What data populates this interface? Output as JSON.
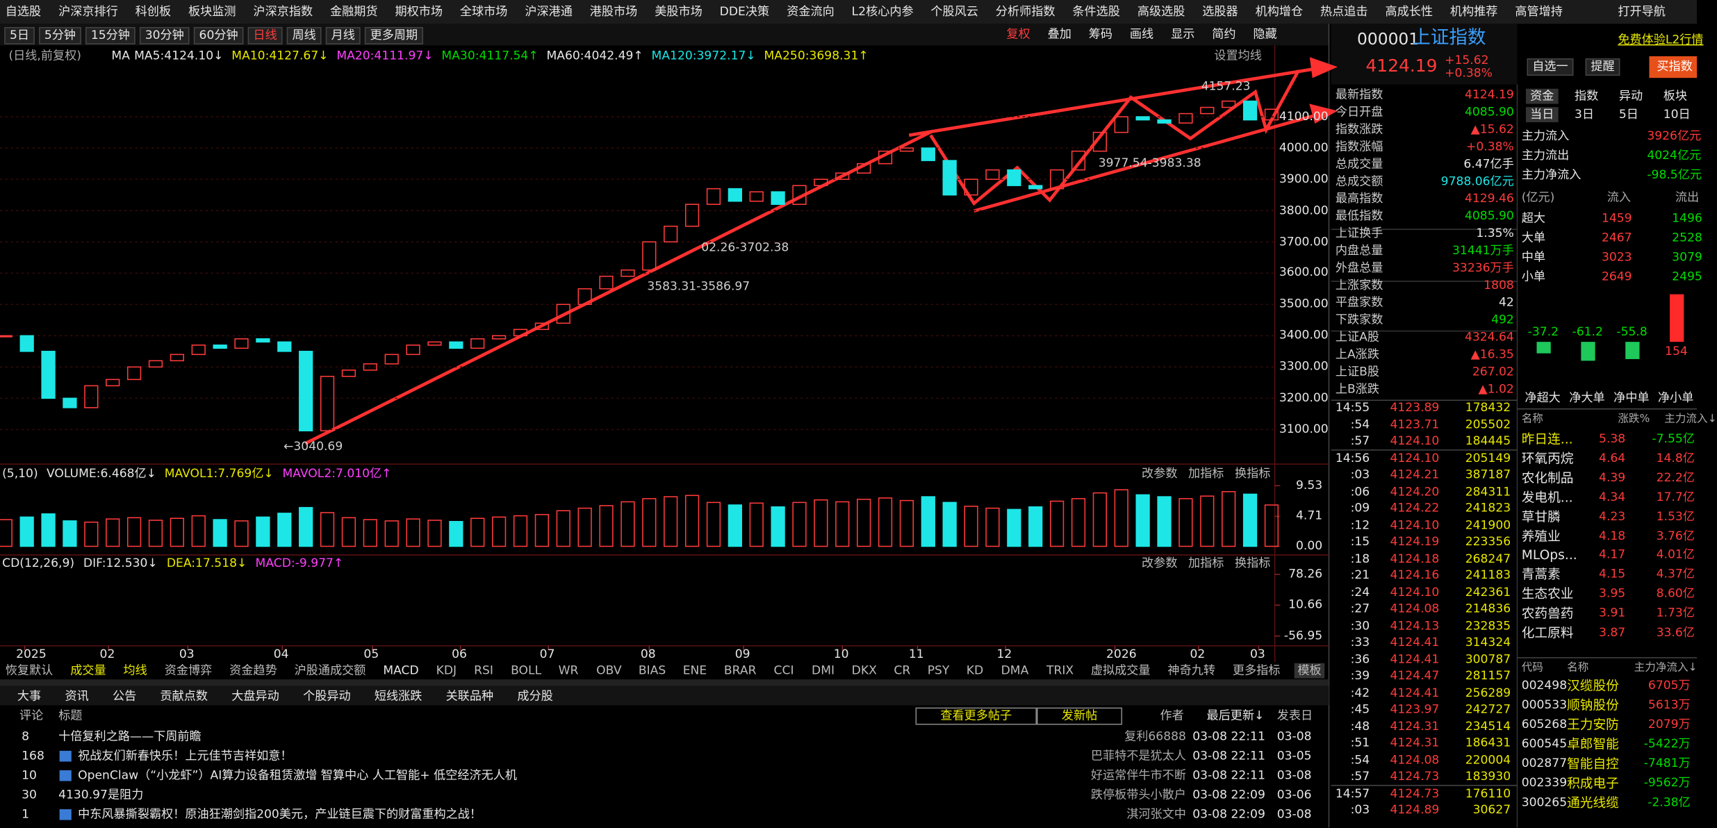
{
  "menu": [
    "自选股",
    "沪深京排行",
    "科创板",
    "板块监测",
    "沪深京指数",
    "金融期货",
    "期权市场",
    "全球市场",
    "沪深港通",
    "港股市场",
    "美股市场",
    "DDE决策",
    "资金流向",
    "L2核心内参",
    "个股风云",
    "分析师指数",
    "条件选股",
    "高级选股",
    "选股器",
    "机构增仓",
    "热点追击",
    "高成长性",
    "机构推荐",
    "高管增持",
    "打开导航"
  ],
  "periods": [
    "5日",
    "5分钟",
    "15分钟",
    "30分钟",
    "60分钟",
    "日线",
    "周线",
    "月线",
    "更多周期"
  ],
  "tools": [
    "复权",
    "叠加",
    "筹码",
    "画线",
    "显示",
    "简约",
    "隐藏"
  ],
  "ma_line": {
    "mode": "(日线,前复权)",
    "ma": "MA",
    "items": [
      "MA5:4124.10↓",
      "MA10:4127.67↓",
      "MA20:4111.97↓",
      "MA30:4117.54↑",
      "MA60:4042.49↑",
      "MA120:3972.17↓",
      "MA250:3698.31↑"
    ],
    "setting": "设置均线"
  },
  "chart_data": {
    "type": "candlestick",
    "closes": [
      3400,
      3350,
      3200,
      3170,
      3240,
      3260,
      3300,
      3320,
      3340,
      3370,
      3360,
      3390,
      3380,
      3350,
      3096,
      3270,
      3290,
      3310,
      3340,
      3370,
      3380,
      3360,
      3390,
      3400,
      3420,
      3440,
      3500,
      3550,
      3590,
      3610,
      3700,
      3750,
      3820,
      3870,
      3830,
      3860,
      3820,
      3880,
      3900,
      3920,
      3950,
      3990,
      4000,
      3960,
      3850,
      3900,
      3930,
      3880,
      3870,
      3930,
      3990,
      4050,
      4100,
      4090,
      4080,
      4110,
      4130,
      4150,
      4090,
      4124
    ],
    "volumes": [
      4.2,
      4.6,
      5.1,
      4.0,
      3.8,
      4.3,
      4.5,
      4.1,
      4.4,
      4.8,
      4.2,
      4.0,
      4.6,
      5.2,
      6.1,
      5.3,
      4.5,
      4.2,
      4.0,
      4.3,
      4.1,
      3.9,
      4.4,
      4.6,
      4.8,
      5.0,
      5.6,
      6.0,
      6.4,
      7.0,
      7.5,
      7.8,
      8.0,
      6.9,
      6.5,
      6.8,
      6.2,
      6.9,
      7.3,
      7.0,
      7.4,
      7.6,
      7.2,
      7.8,
      6.9,
      6.3,
      6.0,
      5.8,
      6.2,
      7.1,
      7.5,
      8.4,
      8.9,
      8.1,
      7.8,
      7.5,
      7.9,
      8.6,
      8.2,
      6.5
    ],
    "ylim": [
      2993,
      4328
    ],
    "yticks": [
      {
        "value": 3100,
        "label": "3100.00"
      },
      {
        "value": 3200,
        "label": "3200.00"
      },
      {
        "value": 3300,
        "label": "3300.00"
      },
      {
        "value": 3400,
        "label": "3400.00"
      },
      {
        "value": 3500,
        "label": "3500.00"
      },
      {
        "value": 3600,
        "label": "3600.00"
      },
      {
        "value": 3700,
        "label": "3700.00"
      },
      {
        "value": 3800,
        "label": "3800.00"
      },
      {
        "value": 3900,
        "label": "3900.00"
      },
      {
        "value": 4000,
        "label": "4000.00"
      },
      {
        "value": 4100,
        "label": "4100.00"
      }
    ],
    "vol_ylim": [
      0,
      10.5
    ],
    "vol_yticks": [
      {
        "value": 0,
        "label": "0.00"
      },
      4.71,
      9.53
    ],
    "macd_ylim": [
      -76,
      104
    ],
    "macd_yticks": [
      -56.95,
      10.66,
      78.26
    ],
    "xticks": [
      {
        "value": 0.9,
        "label": "2025"
      },
      {
        "value": 4.8,
        "label": "02"
      },
      {
        "value": 8.5,
        "label": "03"
      },
      {
        "value": 12.9,
        "label": "04"
      },
      {
        "value": 17.1,
        "label": "05"
      },
      {
        "value": 21.2,
        "label": "06"
      },
      {
        "value": 25.3,
        "label": "07"
      },
      {
        "value": 30.0,
        "label": "08"
      },
      {
        "value": 34.4,
        "label": "09"
      },
      {
        "value": 39.0,
        "label": "10"
      },
      {
        "value": 42.5,
        "label": "11"
      },
      {
        "value": 46.6,
        "label": "12"
      },
      {
        "value": 51.7,
        "label": "2026"
      },
      {
        "value": 55.6,
        "label": "02"
      },
      {
        "value": 58.4,
        "label": "03"
      }
    ],
    "grid": true,
    "up_color": "#ff3b3b",
    "down_color": "#1ee6e6",
    "annotations": [
      "←3040.69",
      "3583.31-3586.97",
      "02.26-3702.38",
      "3977.54-3983.38",
      "4157.23"
    ]
  },
  "vol_label": [
    "(5,10)",
    "VOLUME:6.468亿↓",
    "MAVOL1:7.769亿↓",
    "MAVOL2:7.010亿↑"
  ],
  "macd_label": [
    "CD(12,26,9)",
    "DIF:12.530↓",
    "DEA:17.518↓",
    "MACD:-9.977↑"
  ],
  "panel_buttons": [
    "改参数",
    "加指标",
    "换指标"
  ],
  "indicators": [
    "恢复默认",
    "成交量",
    "均线",
    "资金博弈",
    "资金趋势",
    "沪股通成交额",
    "MACD",
    "KDJ",
    "RSI",
    "BOLL",
    "WR",
    "OBV",
    "BIAS",
    "ENE",
    "BRAR",
    "CCI",
    "DMI",
    "DKX",
    "CR",
    "PSY",
    "KD",
    "DMA",
    "TRIX",
    "虚拟成交量",
    "神奇九转",
    "更多指标",
    "模板"
  ],
  "news_tabs": [
    "大事",
    "资讯",
    "公告",
    "贡献点数",
    "大盘异动",
    "个股异动",
    "短线涨跌",
    "关联品种",
    "成分股"
  ],
  "news_header": {
    "comments": "评论",
    "title": "标题",
    "more": "查看更多帖子",
    "post": "发新帖",
    "author": "作者",
    "updated": "最后更新↓",
    "date": "发表日"
  },
  "news": [
    [
      "8",
      "十倍复利之路——下周前瞻",
      "复利66888",
      "03-08 22:11",
      "03-08"
    ],
    [
      "168",
      "祝战友们新春快乐！上元佳节吉祥如意！",
      "巴菲特不是犹太人",
      "03-08 22:11",
      "03-05"
    ],
    [
      "10",
      "OpenClaw（“小龙虾”）AI算力设备租赁激增 智算中心 人工智能+ 低空经济无人机",
      "好运常伴牛市不断",
      "03-08 22:11",
      "03-08"
    ],
    [
      "30",
      "4130.97是阻力",
      "跌停板带头小散户",
      "03-08 22:09",
      "03-06"
    ],
    [
      "1",
      "中东风暴撕裂霸权！原油狂潮剑指200美元，产业链巨震下的财富重构之战！",
      "淇河张文中",
      "03-08 22:09",
      "03-08"
    ]
  ],
  "quote": {
    "code": "000001",
    "name": "上证指数",
    "price": "4124.19",
    "change": "+15.62",
    "pct": "+0.38%",
    "trial": "免费体验L2行情",
    "watch": "自选一",
    "alert": "提醒",
    "buy": "买指数",
    "rows": [
      [
        "最新指数",
        "4124.19"
      ],
      [
        "今日开盘",
        "4085.90"
      ],
      [
        "指数涨跌",
        "▲15.62"
      ],
      [
        "指数涨幅",
        "+0.38%"
      ],
      [
        "总成交量",
        "6.47亿手"
      ],
      [
        "总成交额",
        "9788.06亿元"
      ],
      [
        "最高指数",
        "4129.46"
      ],
      [
        "最低指数",
        "4085.90"
      ],
      [
        "上证换手",
        "1.35%"
      ],
      [
        "内盘总量",
        "31441万手"
      ],
      [
        "外盘总量",
        "33236万手"
      ],
      [
        "上涨家数",
        "1808"
      ],
      [
        "平盘家数",
        "42"
      ],
      [
        "下跌家数",
        "492"
      ],
      [
        "上证A股",
        "4324.64"
      ],
      [
        "上A涨跌",
        "▲16.35"
      ],
      [
        "上证B股",
        "267.02"
      ],
      [
        "上B涨跌",
        "▲1.02"
      ]
    ]
  },
  "ticks": [
    [
      "14:55",
      "4123.89",
      "178432"
    ],
    [
      ":54",
      "4123.71",
      "205502"
    ],
    [
      ":57",
      "4124.10",
      "184445"
    ],
    [
      "14:56",
      "4124.10",
      "205149"
    ],
    [
      ":03",
      "4124.21",
      "387187"
    ],
    [
      ":06",
      "4124.20",
      "284311"
    ],
    [
      ":09",
      "4124.22",
      "241823"
    ],
    [
      ":12",
      "4124.10",
      "241900"
    ],
    [
      ":15",
      "4124.19",
      "223356"
    ],
    [
      ":18",
      "4124.18",
      "268247"
    ],
    [
      ":21",
      "4124.16",
      "241183"
    ],
    [
      ":24",
      "4124.10",
      "242361"
    ],
    [
      ":27",
      "4124.08",
      "214836"
    ],
    [
      ":30",
      "4124.13",
      "232835"
    ],
    [
      ":33",
      "4124.41",
      "314324"
    ],
    [
      ":36",
      "4124.41",
      "300787"
    ],
    [
      ":39",
      "4124.47",
      "281157"
    ],
    [
      ":42",
      "4124.41",
      "256289"
    ],
    [
      ":45",
      "4123.97",
      "242727"
    ],
    [
      ":48",
      "4124.31",
      "234514"
    ],
    [
      ":51",
      "4124.31",
      "186431"
    ],
    [
      ":54",
      "4124.08",
      "220004"
    ],
    [
      ":57",
      "4124.73",
      "183930"
    ],
    [
      "14:57",
      "4124.73",
      "176110"
    ],
    [
      ":03",
      "4124.89",
      "30627"
    ]
  ],
  "fund": {
    "tabs": [
      "资金",
      "指数",
      "异动",
      "板块"
    ],
    "periods": [
      "当日",
      "3日",
      "5日",
      "10日"
    ],
    "summary": [
      [
        "主力流入",
        "3926亿元"
      ],
      [
        "主力流出",
        "4024亿元"
      ],
      [
        "主力净流入",
        "-98.5亿元"
      ]
    ],
    "table_header": [
      "(亿元)",
      "流入",
      "流出"
    ],
    "table": [
      [
        "超大",
        "1459",
        "1496"
      ],
      [
        "大单",
        "2467",
        "2528"
      ],
      [
        "中单",
        "3023",
        "3079"
      ],
      [
        "小单",
        "2649",
        "2495"
      ]
    ],
    "bars": [
      -37.2,
      -61.2,
      -55.8,
      154
    ],
    "bar_labels": [
      "净超大",
      "净大单",
      "净中单",
      "净小单"
    ]
  },
  "sectors": {
    "header": [
      "名称",
      "涨跌%",
      "主力流入↓"
    ],
    "rows": [
      [
        "昨日连...",
        "5.38",
        "-7.55亿"
      ],
      [
        "环氧丙烷",
        "4.64",
        "14.8亿"
      ],
      [
        "农化制品",
        "4.39",
        "22.2亿"
      ],
      [
        "发电机...",
        "4.34",
        "17.7亿"
      ],
      [
        "草甘膦",
        "4.23",
        "1.53亿"
      ],
      [
        "养殖业",
        "4.18",
        "3.76亿"
      ],
      [
        "MLOps...",
        "4.17",
        "4.01亿"
      ],
      [
        "青蒿素",
        "4.15",
        "4.37亿"
      ],
      [
        "生态农业",
        "3.95",
        "8.60亿"
      ],
      [
        "农药兽药",
        "3.91",
        "1.73亿"
      ],
      [
        "化工原料",
        "3.87",
        "33.6亿"
      ]
    ]
  },
  "stocks": {
    "header": [
      "代码",
      "名称",
      "主力净流入↓"
    ],
    "rows": [
      [
        "002498",
        "汉缆股份",
        "6705万"
      ],
      [
        "000533",
        "顺钠股份",
        "5613万"
      ],
      [
        "605268",
        "王力安防",
        "2079万"
      ],
      [
        "600545",
        "卓郎智能",
        "-5422万"
      ],
      [
        "002877",
        "智能自控",
        "-7481万"
      ],
      [
        "002339",
        "积成电子",
        "-9562万"
      ],
      [
        "300265",
        "通光线缆",
        "-2.38亿"
      ]
    ]
  }
}
